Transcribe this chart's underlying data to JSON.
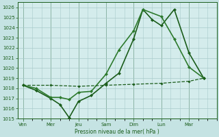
{
  "background_color": "#c5e3e3",
  "plot_bg_color": "#d4ecec",
  "grid_color": "#a8caca",
  "line_color": "#1a5c1a",
  "xlabel": "Pression niveau de la mer( hPa )",
  "ylim": [
    1015,
    1026.5
  ],
  "yticks": [
    1015,
    1016,
    1017,
    1018,
    1019,
    1020,
    1021,
    1022,
    1023,
    1024,
    1025,
    1026
  ],
  "x_labels": [
    "Ven",
    "Mer",
    "Jeu",
    "Sam",
    "Dim",
    "Lun",
    "Mar"
  ],
  "x_tick_pos": [
    0,
    1.5,
    3.0,
    4.5,
    6.0,
    7.5,
    9.0
  ],
  "xlim": [
    -0.3,
    10.5
  ],
  "line1_x": [
    0,
    0.7,
    1.5,
    2.0,
    2.5,
    3.0,
    3.7,
    4.5,
    5.2,
    6.0,
    6.5,
    7.0,
    7.5,
    8.2,
    9.0,
    9.8
  ],
  "line1_y": [
    1018.3,
    1017.8,
    1017.0,
    1016.4,
    1015.1,
    1016.7,
    1017.3,
    1018.5,
    1019.5,
    1022.9,
    1025.8,
    1024.8,
    1024.2,
    1025.8,
    1021.5,
    1019.0
  ],
  "line2_x": [
    0,
    0.7,
    1.5,
    2.0,
    2.5,
    3.0,
    3.7,
    4.5,
    5.2,
    6.0,
    6.5,
    7.5,
    8.2,
    9.0,
    9.8
  ],
  "line2_y": [
    1018.3,
    1018.0,
    1017.1,
    1017.1,
    1016.9,
    1017.6,
    1017.7,
    1019.4,
    1021.8,
    1023.7,
    1025.8,
    1025.1,
    1022.9,
    1020.1,
    1019.0
  ],
  "line3_x": [
    0,
    1.5,
    3.0,
    4.5,
    6.0,
    7.5,
    9.0,
    9.8
  ],
  "line3_y": [
    1018.3,
    1018.3,
    1018.2,
    1018.3,
    1018.4,
    1018.5,
    1018.7,
    1019.0
  ]
}
